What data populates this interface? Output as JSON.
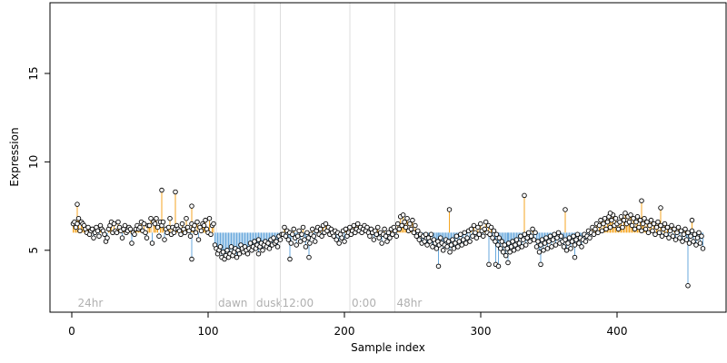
{
  "chart_data": {
    "type": "scatter",
    "title": "",
    "xlabel": "Sample index",
    "ylabel": "Expression",
    "xlim": [
      -16,
      480
    ],
    "ylim": [
      1.5,
      19.0
    ],
    "x_ticks": [
      0,
      100,
      200,
      300,
      400
    ],
    "y_ticks": [
      5,
      10,
      15
    ],
    "baseline": 6.0,
    "colors": {
      "above": "#f5a623",
      "below": "#6aa9dc",
      "point_stroke": "#000000",
      "point_fill": "#ffffff",
      "phase_line": "#dddddd"
    },
    "phase_markers": [
      {
        "label": "24hr",
        "x": 3,
        "line": false
      },
      {
        "label": "dawn",
        "x": 106,
        "line": true
      },
      {
        "label": "dusk",
        "x": 134,
        "line": true
      },
      {
        "label": "12:00",
        "x": 153,
        "line": true
      },
      {
        "label": "0:00",
        "x": 204,
        "line": true
      },
      {
        "label": "48hr",
        "x": 237,
        "line": true
      }
    ],
    "segments": [
      {
        "x0": 1,
        "x1": 104,
        "y": [
          6.5,
          6.6,
          6.3,
          6.5,
          6.8,
          6.1,
          6.6,
          6.5,
          6.4,
          6.2,
          6.0,
          6.3,
          5.9,
          6.1,
          6.2,
          5.7,
          6.0,
          6.3,
          6.1,
          5.8,
          6.4,
          6.2,
          6.1,
          5.9,
          5.5,
          5.7,
          6.2,
          6.4,
          6.6,
          6.0,
          6.5,
          6.1,
          6.0,
          6.6,
          6.3,
          6.1,
          5.7,
          6.2,
          6.4,
          6.0,
          6.1,
          6.3,
          6.2,
          5.4,
          6.0,
          5.9,
          6.2,
          6.4,
          6.2,
          6.3,
          6.6,
          6.1,
          6.5,
          6.0,
          5.7,
          6.4,
          6.4,
          6.8,
          5.4,
          6.6,
          6.5,
          6.8,
          6.3,
          5.8,
          6.6,
          6.4,
          6.6,
          5.6,
          6.2,
          6.0,
          6.3,
          6.8,
          5.9,
          6.3,
          6.0,
          6.2,
          6.4,
          6.2,
          6.1,
          5.9,
          6.5,
          6.2,
          6.0,
          6.8,
          6.3,
          6.1,
          5.8,
          6.5,
          6.2,
          6.4,
          6.0,
          6.6,
          5.6,
          6.3,
          6.1,
          6.5,
          6.4,
          6.7,
          6.2,
          6.0,
          6.8,
          5.9,
          6.4,
          6.5
        ]
      },
      {
        "x0": 105,
        "x1": 154,
        "y": [
          5.3,
          5.1,
          4.8,
          5.0,
          5.2,
          4.6,
          4.9,
          4.5,
          4.7,
          5.0,
          4.6,
          4.8,
          5.2,
          4.7,
          4.9,
          5.1,
          4.6,
          5.0,
          4.8,
          5.3,
          5.1,
          4.9,
          5.2,
          5.0,
          4.8,
          5.1,
          5.4,
          5.0,
          5.2,
          5.5,
          5.1,
          5.3,
          5.6,
          5.2,
          5.4,
          5.0,
          5.3,
          5.5,
          5.2,
          5.4,
          5.1,
          5.6,
          5.3,
          5.7,
          5.4,
          5.5,
          5.2,
          5.8,
          5.6,
          5.9
        ]
      },
      {
        "x0": 155,
        "x1": 340,
        "y": [
          5.9,
          6.3,
          5.8,
          6.1,
          5.6,
          6.0,
          5.4,
          5.9,
          6.2,
          5.7,
          5.3,
          5.8,
          6.1,
          5.5,
          5.9,
          6.3,
          5.6,
          5.2,
          6.0,
          5.7,
          5.4,
          5.9,
          6.2,
          5.8,
          5.5,
          6.1,
          6.3,
          5.9,
          6.2,
          5.8,
          6.4,
          6.0,
          6.5,
          6.1,
          6.3,
          5.9,
          6.2,
          6.0,
          5.8,
          6.1,
          5.6,
          6.0,
          5.4,
          5.9,
          5.7,
          6.1,
          5.5,
          6.2,
          5.8,
          6.0,
          6.3,
          5.9,
          6.1,
          6.4,
          6.0,
          6.2,
          6.5,
          6.1,
          6.3,
          6.0,
          6.2,
          6.4,
          6.1,
          6.3,
          6.0,
          5.8,
          6.2,
          6.0,
          5.6,
          6.1,
          5.9,
          6.3,
          5.7,
          6.0,
          5.4,
          5.9,
          6.2,
          5.8,
          5.5,
          6.0,
          5.7,
          6.2,
          5.9,
          6.3,
          6.1,
          5.8,
          6.5,
          6.2,
          6.9,
          6.4,
          7.0,
          6.6,
          6.3,
          6.8,
          6.1,
          6.5,
          6.2,
          6.7,
          6.0,
          6.4,
          5.8,
          6.1,
          5.6,
          5.9,
          5.4,
          5.8,
          5.5,
          5.9,
          5.3,
          5.7,
          5.5,
          5.9,
          5.2,
          5.6,
          5.4,
          5.1,
          5.5,
          5.3,
          5.7,
          5.4,
          5.0,
          5.3,
          5.6,
          5.2,
          5.5,
          4.9,
          5.3,
          5.6,
          5.1,
          5.4,
          5.8,
          5.2,
          5.5,
          5.9,
          5.3,
          5.6,
          6.0,
          5.4,
          5.7,
          6.1,
          5.5,
          6.2,
          5.8,
          6.4,
          6.0,
          5.7,
          6.3,
          5.9,
          6.5,
          6.1,
          5.8,
          6.2,
          6.6,
          6.0,
          6.4,
          5.9,
          6.3,
          5.7,
          6.1,
          5.5,
          5.9,
          5.3,
          5.7,
          5.1,
          5.5,
          4.9,
          5.3,
          4.7,
          5.1,
          5.4,
          4.9,
          5.2,
          5.5,
          5.0,
          5.3,
          5.6,
          5.1,
          5.4,
          5.8,
          5.2,
          5.6,
          5.9,
          5.3,
          5.7,
          6.0,
          5.5,
          5.8,
          6.2,
          5.6,
          6.0
        ]
      },
      {
        "x0": 341,
        "x1": 463,
        "y": [
          5.2,
          5.5,
          4.9,
          5.3,
          5.6,
          5.0,
          5.4,
          5.7,
          5.1,
          5.5,
          5.8,
          5.2,
          5.6,
          5.9,
          5.3,
          5.7,
          6.0,
          5.4,
          5.8,
          5.5,
          5.2,
          5.6,
          5.0,
          5.4,
          5.7,
          5.1,
          5.5,
          5.8,
          5.3,
          5.6,
          5.9,
          5.4,
          5.7,
          5.2,
          5.6,
          5.9,
          5.5,
          5.8,
          6.1,
          5.7,
          6.0,
          6.3,
          5.9,
          6.2,
          6.5,
          6.0,
          6.4,
          6.7,
          6.1,
          6.5,
          6.8,
          6.2,
          6.6,
          6.9,
          6.3,
          6.7,
          7.0,
          6.4,
          6.8,
          6.5,
          6.2,
          6.6,
          6.9,
          6.3,
          6.7,
          7.1,
          6.5,
          6.9,
          6.6,
          7.0,
          6.4,
          6.8,
          6.2,
          6.6,
          6.9,
          6.3,
          6.7,
          6.1,
          6.5,
          6.8,
          6.2,
          6.6,
          6.0,
          6.4,
          6.7,
          6.1,
          6.5,
          5.9,
          6.3,
          6.6,
          6.0,
          6.4,
          5.8,
          6.2,
          6.5,
          5.9,
          6.3,
          5.7,
          6.1,
          6.4,
          5.8,
          6.2,
          5.6,
          6.0,
          6.3,
          5.7,
          6.1,
          5.5,
          5.9,
          6.2,
          5.6,
          6.0,
          5.4,
          5.8,
          6.1,
          5.5,
          5.9,
          5.3,
          5.7,
          6.0,
          5.4,
          5.8,
          5.1
        ]
      }
    ],
    "peaks": [
      {
        "x": 4,
        "y": 7.6
      },
      {
        "x": 66,
        "y": 8.4
      },
      {
        "x": 76,
        "y": 8.3
      },
      {
        "x": 88,
        "y": 7.5
      },
      {
        "x": 88,
        "y": 4.5
      },
      {
        "x": 137,
        "y": 4.8
      },
      {
        "x": 160,
        "y": 4.5
      },
      {
        "x": 174,
        "y": 4.6
      },
      {
        "x": 269,
        "y": 4.1
      },
      {
        "x": 277,
        "y": 7.3
      },
      {
        "x": 306,
        "y": 4.2
      },
      {
        "x": 311,
        "y": 4.2
      },
      {
        "x": 313,
        "y": 4.1
      },
      {
        "x": 320,
        "y": 4.3
      },
      {
        "x": 332,
        "y": 8.1
      },
      {
        "x": 344,
        "y": 4.2
      },
      {
        "x": 362,
        "y": 7.3
      },
      {
        "x": 369,
        "y": 4.6
      },
      {
        "x": 395,
        "y": 7.1
      },
      {
        "x": 418,
        "y": 7.8
      },
      {
        "x": 432,
        "y": 7.4
      },
      {
        "x": 452,
        "y": 3.0
      },
      {
        "x": 455,
        "y": 6.7
      }
    ]
  }
}
